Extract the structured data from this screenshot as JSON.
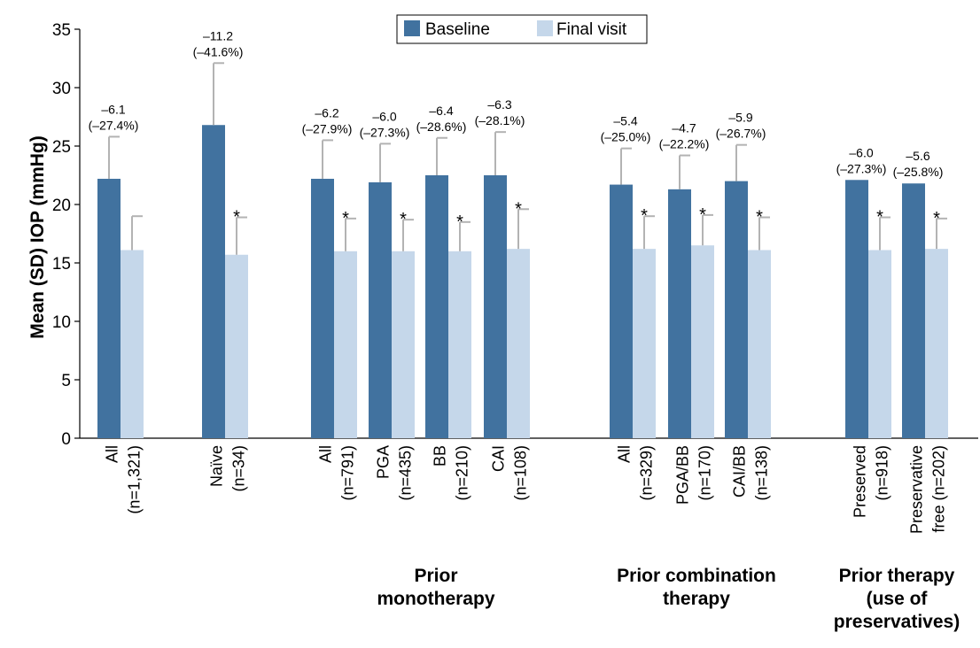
{
  "chart_data": {
    "type": "bar",
    "ylabel": "Mean (SD) IOP (mmHg)",
    "ylim": [
      0,
      35
    ],
    "yticks": [
      0,
      5,
      10,
      15,
      20,
      25,
      30,
      35
    ],
    "grid": false,
    "legend_position": "top-center",
    "series": [
      {
        "name": "Baseline",
        "color": "#41729f"
      },
      {
        "name": "Final visit",
        "color": "#c5d7ea"
      }
    ],
    "categories": [
      {
        "label": "All\n(n=1,321)",
        "baseline": 22.2,
        "baseline_sd": 3.6,
        "final": 16.1,
        "final_sd": 2.9,
        "change": "–6.1",
        "change_pct": "(–27.4%)",
        "sig": false
      },
      {
        "label": "Naïve\n(n=34)",
        "baseline": 26.8,
        "baseline_sd": 5.3,
        "final": 15.7,
        "final_sd": 3.2,
        "change": "–11.2",
        "change_pct": "(–41.6%)",
        "sig": true
      },
      {
        "label": "All\n(n=791)",
        "baseline": 22.2,
        "baseline_sd": 3.3,
        "final": 16.0,
        "final_sd": 2.8,
        "change": "–6.2",
        "change_pct": "(–27.9%)",
        "sig": true
      },
      {
        "label": "PGA\n(n=435)",
        "baseline": 21.9,
        "baseline_sd": 3.3,
        "final": 16.0,
        "final_sd": 2.7,
        "change": "–6.0",
        "change_pct": "(–27.3%)",
        "sig": true
      },
      {
        "label": "BB\n(n=210)",
        "baseline": 22.5,
        "baseline_sd": 3.2,
        "final": 16.0,
        "final_sd": 2.5,
        "change": "–6.4",
        "change_pct": "(–28.6%)",
        "sig": true
      },
      {
        "label": "CAI\n(n=108)",
        "baseline": 22.5,
        "baseline_sd": 3.7,
        "final": 16.2,
        "final_sd": 3.4,
        "change": "–6.3",
        "change_pct": "(–28.1%)",
        "sig": true
      },
      {
        "label": "All\n(n=329)",
        "baseline": 21.7,
        "baseline_sd": 3.1,
        "final": 16.2,
        "final_sd": 2.8,
        "change": "–5.4",
        "change_pct": "(–25.0%)",
        "sig": true
      },
      {
        "label": "PGA/BB\n(n=170)",
        "baseline": 21.3,
        "baseline_sd": 2.9,
        "final": 16.5,
        "final_sd": 2.6,
        "change": "–4.7",
        "change_pct": "(–22.2%)",
        "sig": true
      },
      {
        "label": "CAI/BB\n(n=138)",
        "baseline": 22.0,
        "baseline_sd": 3.1,
        "final": 16.1,
        "final_sd": 2.8,
        "change": "–5.9",
        "change_pct": "(–26.7%)",
        "sig": true
      },
      {
        "label": "Preserved\n(n=918)",
        "baseline": 22.1,
        "baseline_sd": 0,
        "final": 16.1,
        "final_sd": 2.8,
        "change": "–6.0",
        "change_pct": "(–27.3%)",
        "sig": true
      },
      {
        "label": "Preservative\nfree (n=202)",
        "baseline": 21.8,
        "baseline_sd": 0,
        "final": 16.2,
        "final_sd": 2.6,
        "change": "–5.6",
        "change_pct": "(–25.8%)",
        "sig": true
      }
    ],
    "groups": [
      {
        "label": "Prior\nmonotherapy"
      },
      {
        "label": "Prior combination\ntherapy"
      },
      {
        "label": "Prior therapy\n(use of\npreservatives)"
      }
    ],
    "significance_marker": "*"
  }
}
